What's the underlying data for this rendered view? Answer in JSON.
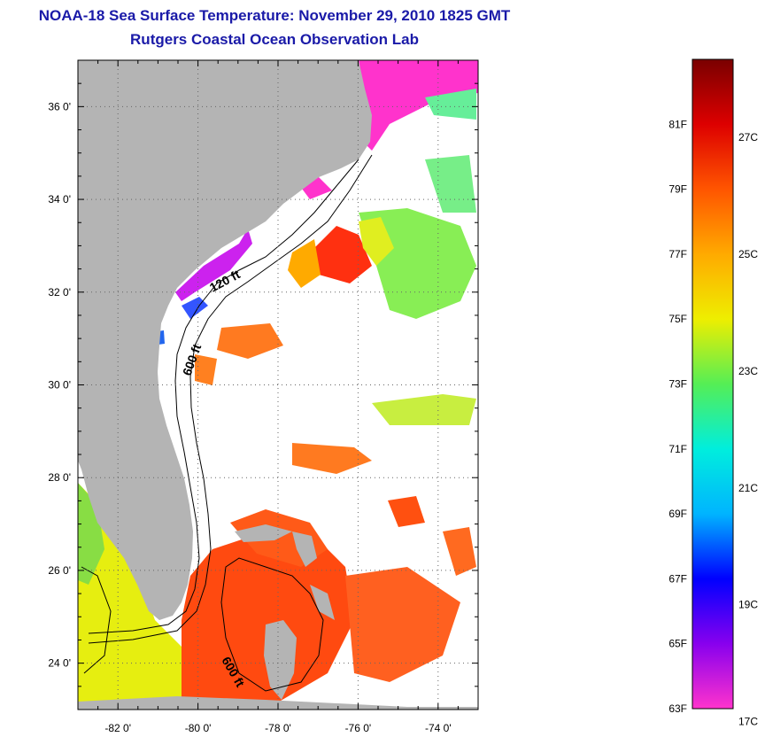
{
  "title_line1": "NOAA-18 Sea Surface Temperature:  November 29, 2010 1825 GMT",
  "title_line2": "Rutgers Coastal Ocean Observation Lab",
  "map": {
    "lon_range": [
      -83,
      -73
    ],
    "lat_range": [
      23,
      37
    ],
    "lat_ticks": [
      "36 0'",
      "34 0'",
      "32 0'",
      "30 0'",
      "28 0'",
      "26 0'",
      "24 0'"
    ],
    "lon_ticks": [
      "-82 0'",
      "-80 0'",
      "-78 0'",
      "-76 0'",
      "-74 0'"
    ],
    "contour_labels": [
      "120 ft",
      "600 ft",
      "600 ft"
    ],
    "colors": {
      "land": "#b4b4b4",
      "cloud_or_nodata": "#ffffff",
      "gulf_stream": "#ff4a10",
      "slope_water": "#88ee55",
      "shelf_cold": "#cc22ee"
    }
  },
  "colorbar": {
    "left_labels": [
      "81F",
      "79F",
      "77F",
      "75F",
      "73F",
      "71F",
      "69F",
      "67F",
      "65F",
      "63F"
    ],
    "right_labels": [
      "27C",
      "25C",
      "23C",
      "21C",
      "19C",
      "17C"
    ],
    "range_f": [
      63,
      83
    ],
    "stops": [
      "#ff33cc",
      "#8800ee",
      "#0000ff",
      "#00b4ff",
      "#00eedd",
      "#55ee55",
      "#eeee00",
      "#ffaa00",
      "#ff5500",
      "#dd0000",
      "#7a0000"
    ]
  }
}
